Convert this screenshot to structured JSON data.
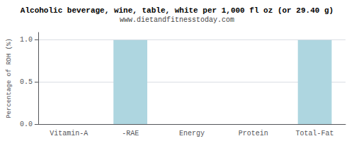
{
  "chart_data": {
    "type": "bar",
    "title": "Alcoholic beverage, wine, table, white per 1,000 fl oz (or 29.40 g)",
    "subtitle": "www.dietandfitnesstoday.com",
    "categories": [
      "Vitamin-A",
      "-RAE",
      "Energy",
      "Protein",
      "Total-Fat"
    ],
    "values": [
      0.0,
      1.0,
      0.0,
      0.0,
      1.0
    ],
    "color": "#aed6e0",
    "ylabel": "Percentage of RDH (%)",
    "ylim": [
      0,
      1.09
    ],
    "yticks": [
      {
        "value": 0,
        "label": "0.0"
      },
      0.5,
      {
        "value": 1,
        "label": "1.0"
      }
    ],
    "grid": true
  }
}
